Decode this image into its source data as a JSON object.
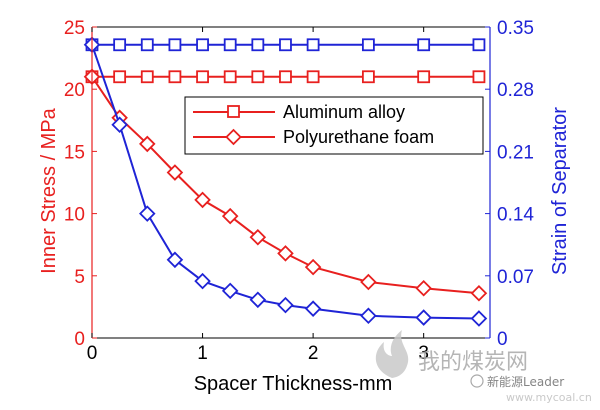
{
  "chart_data": {
    "type": "line",
    "xlabel": "Spacer Thickness-mm",
    "ylabel_left": "Inner Stress / MPa",
    "ylabel_right": "Strain of Separator",
    "xlim": [
      0,
      3.6
    ],
    "ylim_left": [
      0,
      25
    ],
    "ylim_right": [
      0,
      0.35
    ],
    "x_ticks": [
      "0",
      "1",
      "2",
      "3"
    ],
    "y_ticks_left": [
      "0",
      "5",
      "10",
      "15",
      "20",
      "25"
    ],
    "y_ticks_right": [
      "0",
      "0.07",
      "0.14",
      "0.21",
      "0.28",
      "0.35"
    ],
    "grid": false,
    "legend_placement": "upper-right",
    "legend": [
      "Aluminum alloy",
      "Polyurethane foam"
    ],
    "series": [
      {
        "name": "Aluminum alloy",
        "axis": "left",
        "marker": "square",
        "color": "#e8201f",
        "x": [
          0,
          0.25,
          0.5,
          0.75,
          1.0,
          1.25,
          1.5,
          1.75,
          2.0,
          2.5,
          3.0,
          3.5
        ],
        "y": [
          21,
          21,
          21,
          21,
          21,
          21,
          21,
          21,
          21,
          21,
          21,
          21
        ]
      },
      {
        "name": "Polyurethane foam",
        "axis": "left",
        "marker": "diamond",
        "color": "#e8201f",
        "x": [
          0,
          0.25,
          0.5,
          0.75,
          1.0,
          1.25,
          1.5,
          1.75,
          2.0,
          2.5,
          3.0,
          3.5
        ],
        "y": [
          21,
          17.7,
          15.6,
          13.3,
          11.1,
          9.8,
          8.1,
          6.8,
          5.7,
          4.5,
          4.0,
          3.6
        ]
      },
      {
        "name": "",
        "axis": "right",
        "marker": "square",
        "color": "#1f24d6",
        "x": [
          0,
          0.25,
          0.5,
          0.75,
          1.0,
          1.25,
          1.5,
          1.75,
          2.0,
          2.5,
          3.0,
          3.5
        ],
        "y": [
          0.33,
          0.33,
          0.33,
          0.33,
          0.33,
          0.33,
          0.33,
          0.33,
          0.33,
          0.33,
          0.33,
          0.33
        ]
      },
      {
        "name": "",
        "axis": "right",
        "marker": "diamond",
        "color": "#1f24d6",
        "x": [
          0,
          0.25,
          0.5,
          0.75,
          1.0,
          1.25,
          1.5,
          1.75,
          2.0,
          2.5,
          3.0,
          3.5
        ],
        "y": [
          0.33,
          0.24,
          0.14,
          0.088,
          0.064,
          0.053,
          0.043,
          0.037,
          0.033,
          0.025,
          0.023,
          0.022
        ]
      }
    ]
  },
  "watermark": {
    "logo_text": "我的煤炭网",
    "url_text": "www.mycoal.cn",
    "credit_text": "新能源Leader"
  },
  "colors": {
    "left_axis": "#e8201f",
    "right_axis": "#1f24d6",
    "watermark": "#b9b9b9"
  }
}
